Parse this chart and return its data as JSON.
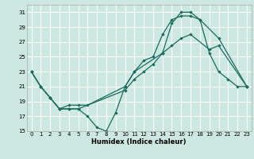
{
  "xlabel": "Humidex (Indice chaleur)",
  "background_color": "#cce8e0",
  "grid_color": "#ffffff",
  "line_color": "#1a6b5e",
  "xmin": 0,
  "xmax": 23,
  "ymin": 15,
  "ymax": 32,
  "yticks": [
    15,
    17,
    19,
    21,
    23,
    25,
    27,
    29,
    31
  ],
  "series": [
    {
      "x": [
        0,
        1,
        2,
        3,
        4,
        5,
        6,
        7,
        8,
        9,
        10,
        11,
        12,
        13,
        14,
        15,
        16,
        17,
        18,
        19,
        20,
        21,
        22,
        23
      ],
      "y": [
        23,
        21,
        19.5,
        18,
        18,
        18,
        17,
        15.5,
        15,
        17.5,
        21,
        23,
        24.5,
        25,
        28,
        30,
        30.5,
        30.5,
        30,
        25.5,
        23,
        22,
        21,
        21
      ]
    },
    {
      "x": [
        0,
        1,
        2,
        3,
        4,
        5,
        6,
        10,
        11,
        14,
        15,
        16,
        17,
        18,
        20,
        23
      ],
      "y": [
        23,
        21,
        19.5,
        18,
        18.5,
        18.5,
        18.5,
        21,
        23,
        25.5,
        29.5,
        31,
        31,
        30,
        27.5,
        21
      ]
    },
    {
      "x": [
        0,
        1,
        2,
        3,
        4,
        5,
        10,
        11,
        12,
        13,
        14,
        15,
        16,
        17,
        19,
        20,
        23
      ],
      "y": [
        23,
        21,
        19.5,
        18,
        18,
        18,
        20.5,
        22,
        23,
        24,
        25.5,
        26.5,
        27.5,
        28,
        26,
        26.5,
        21
      ]
    }
  ]
}
